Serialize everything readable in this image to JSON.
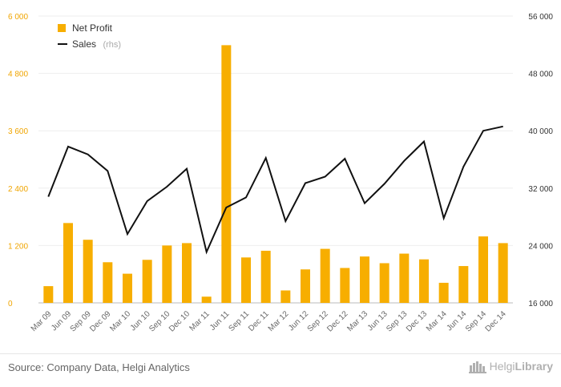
{
  "chart_data": {
    "type": "bar",
    "categories": [
      "Mar 09",
      "Jun 09",
      "Sep 09",
      "Dec 09",
      "Mar 10",
      "Jun 10",
      "Sep 10",
      "Dec 10",
      "Mar 11",
      "Jun 11",
      "Sep 11",
      "Dec 11",
      "Mar 12",
      "Jun 12",
      "Sep 12",
      "Dec 12",
      "Mar 13",
      "Jun 13",
      "Sep 13",
      "Dec 13",
      "Mar 14",
      "Jun 14",
      "Sep 14",
      "Dec 14"
    ],
    "series": [
      {
        "name": "Net Profit",
        "type": "bar",
        "axis": "left",
        "color": "#f7ae00",
        "values": [
          350,
          1670,
          1320,
          850,
          610,
          900,
          1200,
          1250,
          130,
          5390,
          950,
          1090,
          260,
          700,
          1130,
          730,
          970,
          830,
          1030,
          910,
          420,
          770,
          1390,
          1250
        ]
      },
      {
        "name": "Sales",
        "name_suffix": "(rhs)",
        "type": "line",
        "axis": "right",
        "color": "#111111",
        "values": [
          30800,
          37800,
          36700,
          34400,
          25600,
          30200,
          32200,
          34700,
          23100,
          29300,
          30700,
          36200,
          27400,
          32700,
          33600,
          36100,
          29900,
          32600,
          35800,
          38500,
          27800,
          35000,
          40000,
          40600
        ]
      }
    ],
    "left_axis": {
      "min": 0,
      "max": 6000,
      "ticks": [
        0,
        1200,
        2400,
        3600,
        4800,
        6000
      ],
      "tick_labels": [
        "0",
        "1 200",
        "2 400",
        "3 600",
        "4 800",
        "6 000"
      ],
      "color": "#f0a500"
    },
    "right_axis": {
      "min": 16000,
      "max": 56000,
      "ticks": [
        16000,
        24000,
        32000,
        40000,
        48000,
        56000
      ],
      "tick_labels": [
        "16 000",
        "24 000",
        "32 000",
        "40 000",
        "48 000",
        "56 000"
      ]
    },
    "grid": true,
    "legend_position": "top-left"
  },
  "footer": {
    "source": "Source: Company Data, Helgi Analytics",
    "brand_regular": "Helgi",
    "brand_bold": "Library"
  }
}
